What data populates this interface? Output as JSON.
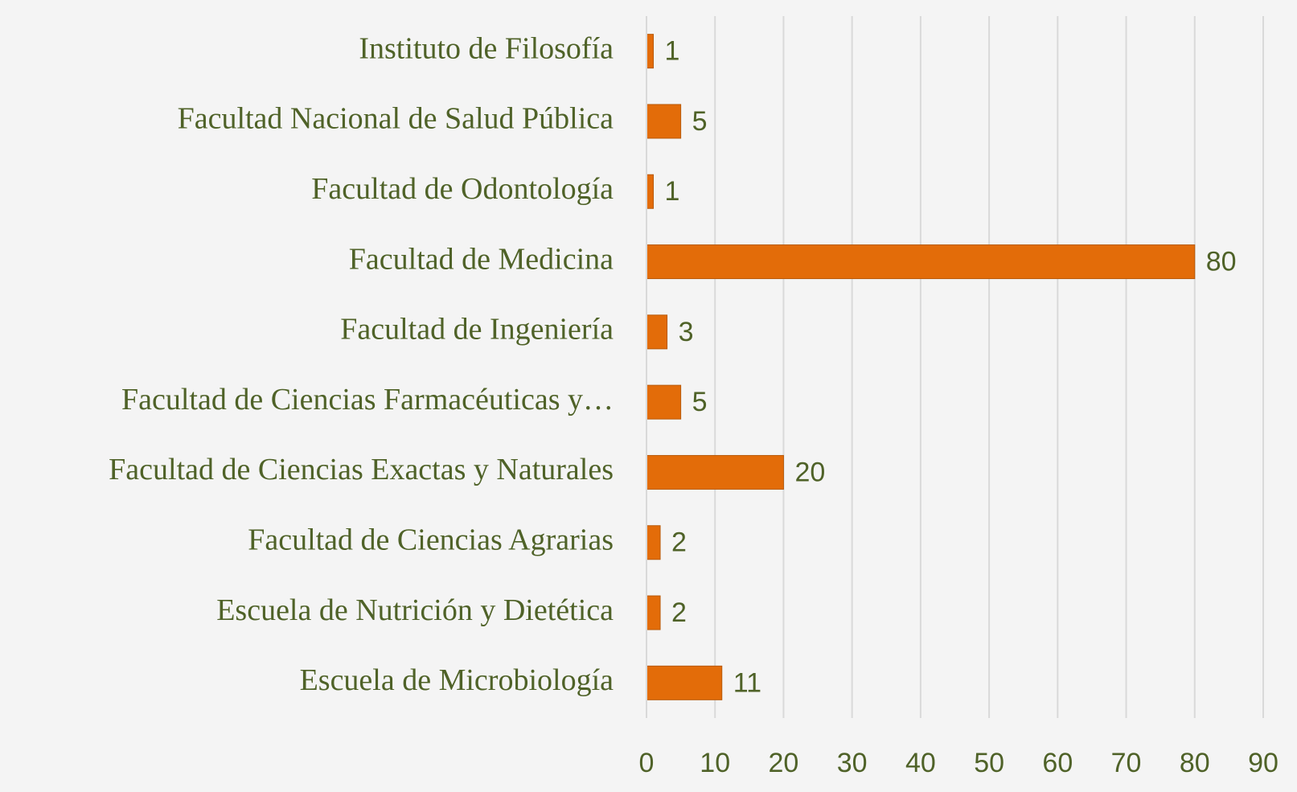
{
  "chart_data": {
    "type": "barh",
    "categories": [
      "Instituto de Filosofía",
      "Facultad Nacional de Salud Pública",
      "Facultad de Odontología",
      "Facultad de Medicina",
      "Facultad de Ingeniería",
      "Facultad de Ciencias Farmacéuticas y…",
      "Facultad de Ciencias Exactas y Naturales",
      "Facultad de Ciencias Agrarias",
      "Escuela de Nutrición y Dietética",
      "Escuela de Microbiología"
    ],
    "values": [
      1,
      5,
      1,
      80,
      3,
      5,
      20,
      2,
      2,
      11
    ],
    "color": "#e36c09",
    "xlim": [
      0,
      90
    ],
    "xticks": [
      0,
      10,
      20,
      30,
      40,
      50,
      60,
      70,
      80,
      90
    ],
    "grid": true
  }
}
